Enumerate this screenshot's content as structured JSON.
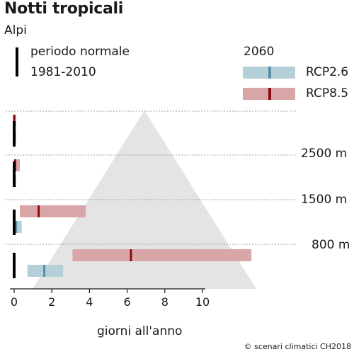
{
  "chart_data": {
    "type": "range-bar",
    "title": "Notti tropicali",
    "subtitle": "Alpi",
    "xlabel": "giorni all'anno",
    "xticks": [
      0,
      2,
      4,
      6,
      8,
      10
    ],
    "xlim": [
      0,
      10
    ],
    "legend": {
      "normal_line1": "periodo normale",
      "normal_line2": "1981-2010",
      "future_title": "2060",
      "rcp26": "RCP2.6",
      "rcp85": "RCP8.5"
    },
    "elevation_labels": [
      "2500 m",
      "1500 m",
      "800 m"
    ],
    "bands": [
      {
        "band": "> 2500 m",
        "normal": 0,
        "rcp26": {
          "min": 0,
          "max": 0.1,
          "median": 0
        },
        "rcp85": {
          "min": 0,
          "max": 0.1,
          "median": 0
        }
      },
      {
        "band": "1500-2500 m",
        "normal": 0,
        "rcp26": {
          "min": 0,
          "max": 0.1,
          "median": 0
        },
        "rcp85": {
          "min": 0,
          "max": 0.3,
          "median": 0.05
        }
      },
      {
        "band": "800-1500 m",
        "normal": 0,
        "rcp26": {
          "min": 0,
          "max": 0.4,
          "median": 0.1
        },
        "rcp85": {
          "min": 0.3,
          "max": 3.8,
          "median": 1.3
        }
      },
      {
        "band": "< 800 m",
        "normal": 0,
        "rcp26": {
          "min": 0.7,
          "max": 2.6,
          "median": 1.6
        },
        "rcp85": {
          "min": 3.1,
          "max": 12.6,
          "median": 6.2
        }
      }
    ],
    "colors": {
      "rcp26_bar": "#b5cfd8",
      "rcp26_median": "#5b8fa8",
      "rcp85_bar": "#d9a6a8",
      "rcp85_median": "#8b0a10",
      "normal": "#000000",
      "mountain": "#e1e1e1"
    }
  },
  "credit": "© scenari climatici CH2018"
}
